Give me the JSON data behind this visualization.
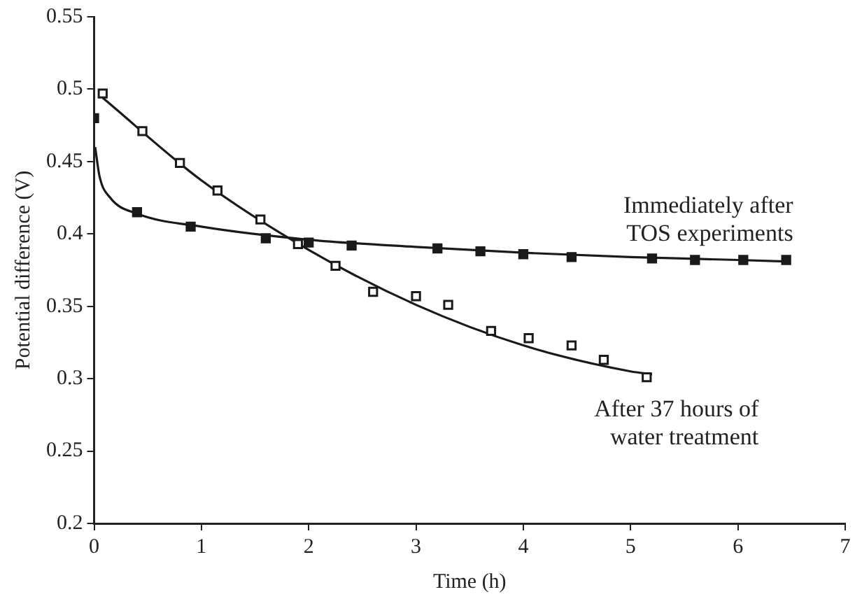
{
  "chart_data": {
    "type": "scatter",
    "xlabel": "Time (h)",
    "ylabel": "Potential difference (V)",
    "xlim": [
      0,
      7
    ],
    "xticks": [
      0,
      1,
      2,
      3,
      4,
      5,
      6,
      7
    ],
    "ylim": [
      0.2,
      0.55
    ],
    "yticks": [
      0.2,
      0.25,
      0.3,
      0.35,
      0.4,
      0.45,
      0.5,
      0.55
    ],
    "grid": false,
    "legend": false,
    "marker": "square",
    "series": [
      {
        "name": "Immediately after TOS experiments",
        "color": "#1a1a1a",
        "x": [
          0,
          0.4,
          0.9,
          1.6,
          2.0,
          2.4,
          3.2,
          3.6,
          4.0,
          4.45,
          5.2,
          5.6,
          6.05,
          6.45
        ],
        "values": [
          0.48,
          0.415,
          0.405,
          0.397,
          0.394,
          0.392,
          0.39,
          0.388,
          0.386,
          0.384,
          0.383,
          0.382,
          0.382,
          0.382
        ]
      },
      {
        "name": "After 37 hours of water treatment",
        "color": "#1a1a1a",
        "x": [
          0.08,
          0.45,
          0.8,
          1.15,
          1.55,
          1.9,
          2.25,
          2.6,
          3.0,
          3.3,
          3.7,
          4.05,
          4.45,
          4.75,
          5.15
        ],
        "values": [
          0.497,
          0.471,
          0.449,
          0.43,
          0.41,
          0.393,
          0.378,
          0.36,
          0.357,
          0.351,
          0.333,
          0.328,
          0.323,
          0.313,
          0.301
        ]
      },
      {
        "type": "line",
        "marker": "none",
        "color": "#1a1a1a",
        "x": [
          0.01,
          0.05,
          0.15,
          0.4,
          1,
          2,
          3,
          4,
          5,
          6,
          6.45
        ],
        "values": [
          0.46,
          0.44,
          0.425,
          0.414,
          0.405,
          0.396,
          0.391,
          0.387,
          0.384,
          0.382,
          0.381
        ]
      },
      {
        "type": "line",
        "marker": "none",
        "color": "#1a1a1a",
        "x": [
          0.08,
          1,
          2,
          3,
          4,
          5,
          5.2
        ],
        "values": [
          0.494,
          0.437,
          0.389,
          0.351,
          0.323,
          0.305,
          0.303
        ]
      }
    ]
  }
}
